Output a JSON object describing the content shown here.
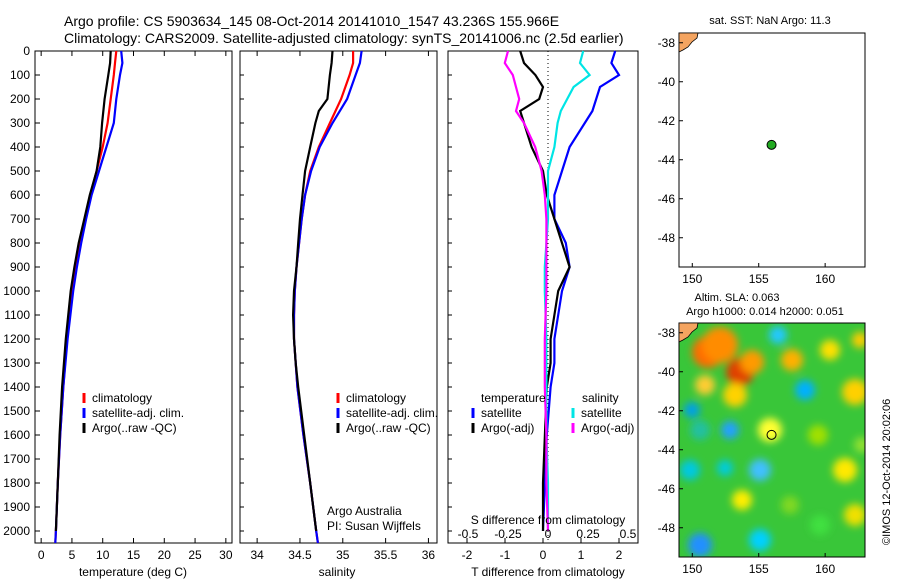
{
  "header": {
    "line1": "Argo profile: CS 5903634_145 08-Oct-2014 20141010_1547 43.236S 155.966E",
    "line2": "Climatology: CARS2009. Satellite-adjusted climatology: synTS_20141006.nc (2.5d earlier)"
  },
  "colors": {
    "climatology": "#ff0000",
    "satellite": "#0000ff",
    "argo": "#000000",
    "salinity_satellite": "#00e5e5",
    "salinity_argo": "#ff00ff",
    "land": "#f4a460",
    "float_marker": "#22aa22"
  },
  "chart_data": [
    {
      "type": "line",
      "id": "temperature",
      "xlabel": "temperature (deg C)",
      "xlim": [
        -1,
        31
      ],
      "ylim": [
        2050,
        0
      ],
      "xticks": [
        "0",
        "5",
        "10",
        "15",
        "20",
        "25",
        "30"
      ],
      "xtick_values": [
        0,
        5,
        10,
        15,
        20,
        25,
        30
      ],
      "yticks": [
        "0",
        "100",
        "200",
        "300",
        "400",
        "500",
        "600",
        "700",
        "800",
        "900",
        "1000",
        "1100",
        "1200",
        "1300",
        "1400",
        "1500",
        "1600",
        "1700",
        "1800",
        "1900",
        "2000"
      ],
      "ytick_values": [
        0,
        100,
        200,
        300,
        400,
        500,
        600,
        700,
        800,
        900,
        1000,
        1100,
        1200,
        1300,
        1400,
        1500,
        1600,
        1700,
        1800,
        1900,
        2000
      ],
      "legend": [
        "climatology",
        "satellite-adj. clim.",
        "Argo(..raw -QC)"
      ],
      "series": [
        {
          "name": "climatology",
          "color": "#ff0000",
          "depth": [
            0,
            50,
            100,
            200,
            300,
            400,
            500,
            600,
            700,
            800,
            900,
            1000,
            1200,
            1400,
            1600,
            1800,
            2000,
            2050
          ],
          "values": [
            12.2,
            12.0,
            11.8,
            11.3,
            10.8,
            10.0,
            9.0,
            8.0,
            7.2,
            6.4,
            5.7,
            5.1,
            4.2,
            3.6,
            3.1,
            2.7,
            2.4,
            2.3
          ]
        },
        {
          "name": "satellite-adj. clim.",
          "color": "#0000ff",
          "depth": [
            0,
            50,
            100,
            200,
            300,
            400,
            500,
            600,
            700,
            800,
            900,
            1000,
            1200,
            1400,
            1600,
            1800,
            2000,
            2050
          ],
          "values": [
            13.0,
            13.2,
            12.8,
            12.2,
            11.8,
            10.6,
            9.4,
            8.2,
            7.3,
            6.5,
            5.8,
            5.2,
            4.3,
            3.6,
            3.1,
            2.7,
            2.4,
            2.3
          ]
        },
        {
          "name": "Argo(..raw -QC)",
          "color": "#000000",
          "depth": [
            0,
            50,
            100,
            200,
            300,
            400,
            500,
            600,
            700,
            800,
            900,
            1000,
            1200,
            1400,
            1600,
            1800,
            2000
          ],
          "values": [
            11.3,
            11.2,
            10.9,
            10.3,
            9.9,
            9.6,
            9.0,
            7.9,
            7.0,
            6.1,
            5.4,
            4.8,
            4.0,
            3.4,
            3.0,
            2.7,
            2.4
          ]
        }
      ]
    },
    {
      "type": "line",
      "id": "salinity",
      "xlabel": "salinity",
      "xlim": [
        33.8,
        36.1
      ],
      "ylim": [
        2050,
        0
      ],
      "xticks": [
        "34",
        "34.5",
        "35",
        "35.5",
        "36"
      ],
      "xtick_values": [
        34,
        34.5,
        35,
        35.5,
        36
      ],
      "legend": [
        "climatology",
        "satellite-adj. clim.",
        "Argo(..raw -QC)"
      ],
      "annotation": [
        "Argo Australia",
        "PI: Susan Wijffels"
      ],
      "series": [
        {
          "name": "climatology",
          "color": "#ff0000",
          "depth": [
            0,
            50,
            100,
            200,
            300,
            400,
            500,
            600,
            700,
            800,
            900,
            1000,
            1100,
            1200,
            1400,
            1600,
            1800,
            2000,
            2050
          ],
          "values": [
            35.12,
            35.12,
            35.08,
            34.98,
            34.85,
            34.72,
            34.62,
            34.56,
            34.52,
            34.49,
            34.46,
            34.44,
            34.43,
            34.43,
            34.47,
            34.54,
            34.62,
            34.69,
            34.71
          ]
        },
        {
          "name": "satellite-adj. clim.",
          "color": "#0000ff",
          "depth": [
            0,
            50,
            100,
            200,
            300,
            400,
            500,
            600,
            700,
            800,
            900,
            1000,
            1100,
            1200,
            1400,
            1600,
            1800,
            2000,
            2050
          ],
          "values": [
            35.22,
            35.2,
            35.15,
            35.05,
            34.88,
            34.73,
            34.63,
            34.56,
            34.52,
            34.49,
            34.46,
            34.44,
            34.43,
            34.43,
            34.47,
            34.54,
            34.62,
            34.69,
            34.71
          ]
        },
        {
          "name": "Argo(..raw -QC)",
          "color": "#000000",
          "depth": [
            0,
            50,
            100,
            200,
            250,
            300,
            400,
            500,
            600,
            700,
            800,
            900,
            1000,
            1100,
            1200,
            1300,
            1400,
            1600,
            1800,
            2000
          ],
          "values": [
            34.88,
            34.87,
            34.85,
            34.82,
            34.72,
            34.68,
            34.62,
            34.56,
            34.53,
            34.5,
            34.48,
            34.46,
            34.43,
            34.42,
            34.43,
            34.45,
            34.48,
            34.55,
            34.62,
            34.69
          ]
        }
      ]
    },
    {
      "type": "line",
      "id": "difference",
      "xlabel": "T difference from climatology",
      "xlabel_top": "S difference from climatology",
      "xlim": [
        -2.5,
        2.5
      ],
      "ylim": [
        2050,
        0
      ],
      "xticks": [
        "-2",
        "-1",
        "0",
        "1",
        "2"
      ],
      "xtick_values": [
        -2,
        -1,
        0,
        1,
        2
      ],
      "sticks": [
        "-0.5",
        "-0.25",
        "0",
        "0.25",
        "0.5"
      ],
      "legend_t_title": "temperature",
      "legend_s_title": "salinity",
      "legend": [
        "satellite",
        "Argo(-adj)",
        "satellite",
        "Argo(-adj)"
      ],
      "series": [
        {
          "name": "T satellite",
          "color": "#0000ff",
          "depth": [
            0,
            50,
            100,
            150,
            200,
            250,
            300,
            400,
            500,
            600,
            700,
            800,
            900,
            1000,
            1100,
            1200,
            1300,
            1400,
            1600,
            1800,
            2000
          ],
          "values": [
            1.9,
            1.8,
            2.0,
            1.5,
            1.4,
            1.3,
            1.1,
            0.7,
            0.5,
            0.3,
            0.3,
            0.6,
            0.7,
            0.5,
            0.4,
            0.3,
            0.3,
            0.2,
            0.1,
            0.05,
            0.0
          ]
        },
        {
          "name": "T Argo(-adj)",
          "color": "#000000",
          "depth": [
            0,
            50,
            100,
            150,
            200,
            250,
            300,
            400,
            500,
            600,
            700,
            800,
            900,
            1000,
            1100,
            1200,
            1300,
            1400,
            1600,
            1800,
            2000
          ],
          "values": [
            -0.6,
            -0.5,
            -0.2,
            0.0,
            -0.1,
            -0.6,
            -0.5,
            -0.3,
            0.0,
            0.1,
            0.3,
            0.5,
            0.7,
            0.4,
            0.3,
            0.2,
            0.2,
            0.1,
            0.05,
            0.0,
            0.0
          ]
        },
        {
          "name": "S satellite",
          "color": "#00e5e5",
          "depth": [
            0,
            50,
            100,
            150,
            200,
            250,
            300,
            400,
            500,
            600,
            700,
            800,
            900,
            1000,
            1200,
            1400,
            1600,
            1800,
            2000
          ],
          "values": [
            0.22,
            0.2,
            0.26,
            0.16,
            0.12,
            0.08,
            0.06,
            0.04,
            0.0,
            0.0,
            0.0,
            -0.01,
            -0.02,
            -0.02,
            -0.01,
            -0.01,
            -0.01,
            0.0,
            0.0
          ]
        },
        {
          "name": "S Argo(-adj)",
          "color": "#ff00ff",
          "depth": [
            0,
            50,
            100,
            150,
            200,
            250,
            300,
            400,
            500,
            600,
            700,
            800,
            900,
            1000,
            1200,
            1400,
            1600,
            1800,
            2000
          ],
          "values": [
            -0.25,
            -0.27,
            -0.22,
            -0.2,
            -0.18,
            -0.2,
            -0.15,
            -0.08,
            -0.04,
            -0.02,
            -0.01,
            -0.01,
            -0.01,
            -0.01,
            -0.02,
            -0.02,
            -0.01,
            -0.01,
            0.0
          ]
        }
      ]
    },
    {
      "type": "scatter",
      "id": "sst_map",
      "title": "sat. SST: NaN Argo: 11.3",
      "xlim": [
        149,
        163
      ],
      "ylim": [
        -49.5,
        -37.5
      ],
      "xticks": [
        "150",
        "155",
        "160"
      ],
      "xtick_values": [
        150,
        155,
        160
      ],
      "yticks": [
        "-38",
        "-40",
        "-42",
        "-44",
        "-46",
        "-48"
      ],
      "ytick_values": [
        -38,
        -40,
        -42,
        -44,
        -46,
        -48
      ],
      "point": {
        "lon": 155.966,
        "lat": -43.236
      }
    },
    {
      "type": "heatmap",
      "id": "sla_map",
      "title_line1": "Altim. SLA: 0.063",
      "title_line2": "Argo h1000: 0.014 h2000: 0.051",
      "xlim": [
        149,
        163
      ],
      "ylim": [
        -49.5,
        -37.5
      ],
      "xticks": [
        "150",
        "155",
        "160"
      ],
      "xtick_values": [
        150,
        155,
        160
      ],
      "yticks": [
        "-38",
        "-40",
        "-42",
        "-44",
        "-46",
        "-48"
      ],
      "ytick_values": [
        -38,
        -40,
        -42,
        -44,
        -46,
        -48
      ],
      "point": {
        "lon": 155.966,
        "lat": -43.236
      }
    }
  ],
  "side_stamp": "©IMOS 12-Oct-2014 20:02:06"
}
